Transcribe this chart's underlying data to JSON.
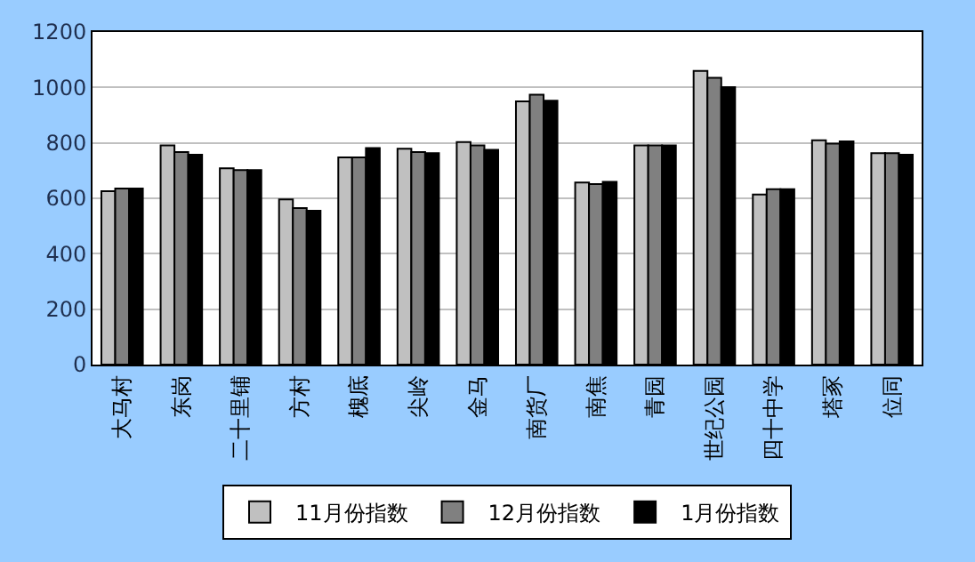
{
  "chart_data": {
    "type": "bar",
    "categories": [
      "大马村",
      "东岗",
      "二十里铺",
      "方村",
      "槐底",
      "尖岭",
      "金马",
      "南货厂",
      "南焦",
      "青园",
      "世纪公园",
      "四十中学",
      "塔冢",
      "位同"
    ],
    "series": [
      {
        "name": "11月份指数",
        "color": "#c0c0c0",
        "values": [
          626,
          791,
          708,
          596,
          748,
          779,
          803,
          950,
          657,
          791,
          1060,
          614,
          809,
          763
        ]
      },
      {
        "name": "12月份指数",
        "color": "#808080",
        "values": [
          635,
          767,
          702,
          565,
          748,
          767,
          791,
          974,
          651,
          791,
          1035,
          633,
          797,
          763
        ]
      },
      {
        "name": "1月份指数",
        "color": "#000000",
        "values": [
          635,
          757,
          702,
          555,
          781,
          763,
          775,
          952,
          659,
          791,
          1001,
          633,
          805,
          757
        ]
      }
    ],
    "ylim": [
      0,
      1200
    ],
    "yticks": [
      0,
      200,
      400,
      600,
      800,
      1000,
      1200
    ],
    "grid": "y",
    "legend": "bottom"
  }
}
